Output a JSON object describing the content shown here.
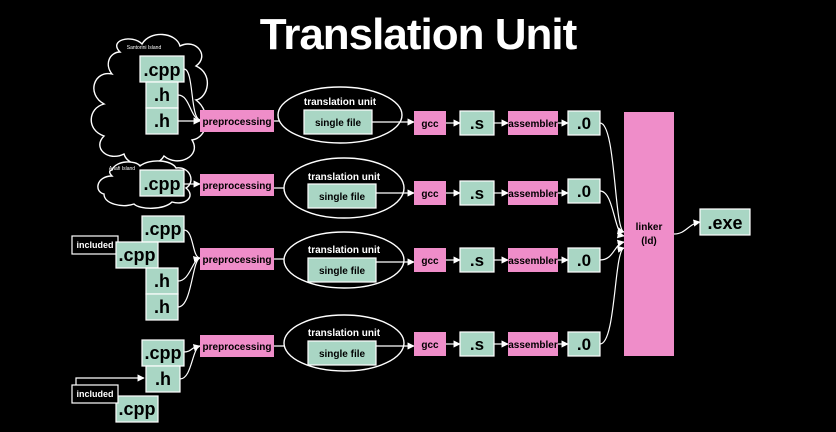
{
  "title": "Translation Unit",
  "labels": {
    "cpp": ".cpp",
    "h": ".h",
    "preprocessing": "preprocessing",
    "translation_unit": "translation unit",
    "single_file": "single file",
    "gcc": "gcc",
    "s": ".s",
    "assembler": "assembler",
    "o": ".0",
    "linker": "linker",
    "ld": "(ld)",
    "exe": ".exe",
    "included": "included"
  },
  "clouds": {
    "top": "Santorini Island",
    "second": "Anafi Island"
  },
  "colors": {
    "background": "#000000",
    "green": "#a9d6c4",
    "pink": "#ef8dc9",
    "line": "#ffffff"
  }
}
